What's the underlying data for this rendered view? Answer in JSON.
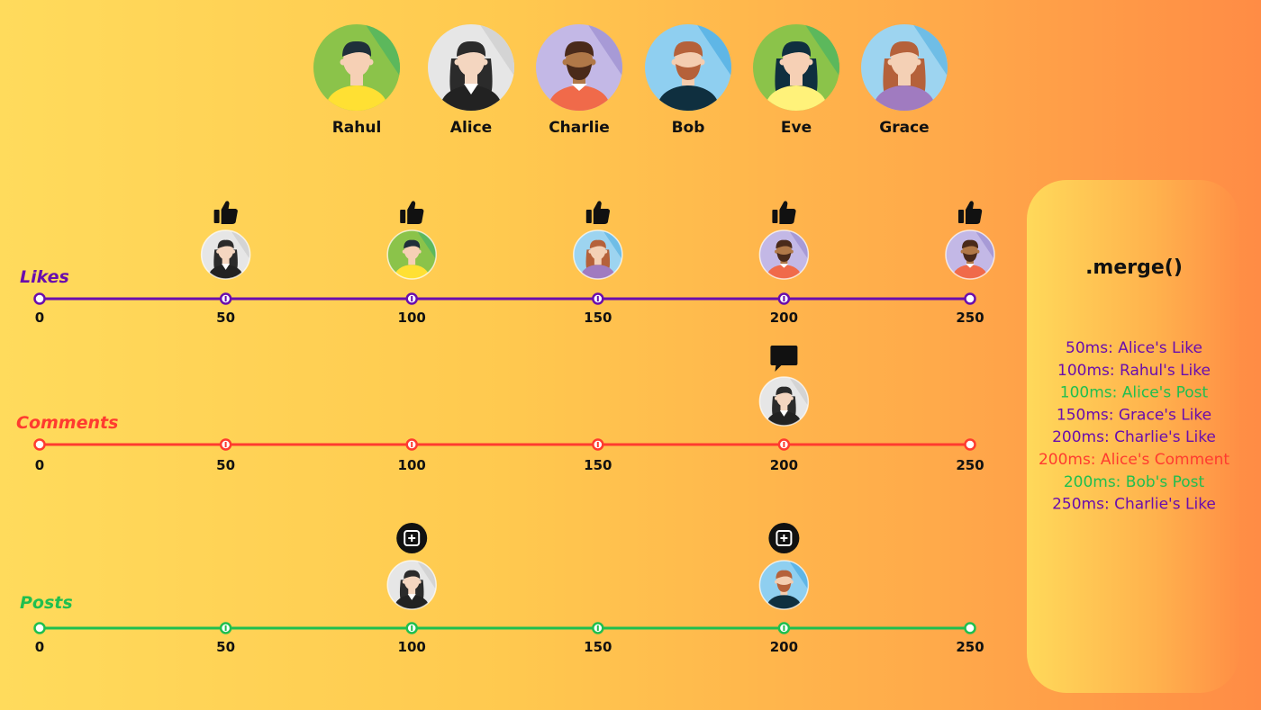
{
  "colors": {
    "likes": "#6a0dad",
    "comments": "#ff3b2f",
    "posts": "#1fbf4f",
    "icon": "#111111"
  },
  "users": [
    {
      "name": "Rahul",
      "bg": "#8bc34a",
      "bg2": "#5cb85c",
      "hair": "#1f2f3a",
      "skin": "#f6d0b5",
      "shirt": "#ffe033",
      "style": "short"
    },
    {
      "name": "Alice",
      "bg": "#e6e6e6",
      "bg2": "#d4d4d4",
      "hair": "#2b2b2b",
      "skin": "#f4d6c0",
      "shirt": "#222222",
      "style": "long-dark"
    },
    {
      "name": "Charlie",
      "bg": "#c3b8e6",
      "bg2": "#a79ad6",
      "hair": "#4a2a1a",
      "skin": "#b07848",
      "shirt": "#f06a4a",
      "style": "beard-dark"
    },
    {
      "name": "Bob",
      "bg": "#8fcff0",
      "bg2": "#5fb6e6",
      "hair": "#b5613a",
      "skin": "#f4cdb0",
      "shirt": "#0f2f3f",
      "style": "beard"
    },
    {
      "name": "Eve",
      "bg": "#8bc34a",
      "bg2": "#5cb85c",
      "hair": "#0f2f3f",
      "skin": "#f6d0b5",
      "shirt": "#fff27a",
      "style": "long-blue"
    },
    {
      "name": "Grace",
      "bg": "#9dd4f0",
      "bg2": "#6fbde6",
      "hair": "#b5613a",
      "skin": "#f4d0b5",
      "shirt": "#a07bc0",
      "style": "long-red"
    }
  ],
  "streams": [
    {
      "id": "likes",
      "title": "Likes",
      "color": "#6a0dad",
      "icon": "thumbs-up-icon",
      "ticks": [
        0,
        50,
        100,
        150,
        200,
        250
      ],
      "events": [
        {
          "t": 50,
          "user": "Alice"
        },
        {
          "t": 100,
          "user": "Rahul"
        },
        {
          "t": 150,
          "user": "Grace"
        },
        {
          "t": 200,
          "user": "Charlie"
        },
        {
          "t": 250,
          "user": "Charlie"
        }
      ]
    },
    {
      "id": "comments",
      "title": "Comments",
      "color": "#ff3b2f",
      "icon": "comment-bubble-icon",
      "ticks": [
        0,
        50,
        100,
        150,
        200,
        250
      ],
      "events": [
        {
          "t": 200,
          "user": "Alice"
        }
      ]
    },
    {
      "id": "posts",
      "title": "Posts",
      "color": "#1fbf4f",
      "icon": "add-post-icon",
      "ticks": [
        0,
        50,
        100,
        150,
        200,
        250
      ],
      "events": [
        {
          "t": 100,
          "user": "Alice"
        },
        {
          "t": 200,
          "user": "Bob"
        }
      ]
    }
  ],
  "merge_panel": {
    "title": ".merge()",
    "entries": [
      {
        "text": "50ms: Alice's Like",
        "color": "#6a0dad"
      },
      {
        "text": "100ms: Rahul's Like",
        "color": "#6a0dad"
      },
      {
        "text": "100ms: Alice's Post",
        "color": "#1fbf4f"
      },
      {
        "text": "150ms: Grace's Like",
        "color": "#6a0dad"
      },
      {
        "text": "200ms: Charlie's Like",
        "color": "#6a0dad"
      },
      {
        "text": "200ms: Alice's Comment",
        "color": "#ff3b2f"
      },
      {
        "text": "200ms: Bob's Post",
        "color": "#1fbf4f"
      },
      {
        "text": "250ms: Charlie's Like",
        "color": "#6a0dad"
      }
    ]
  }
}
